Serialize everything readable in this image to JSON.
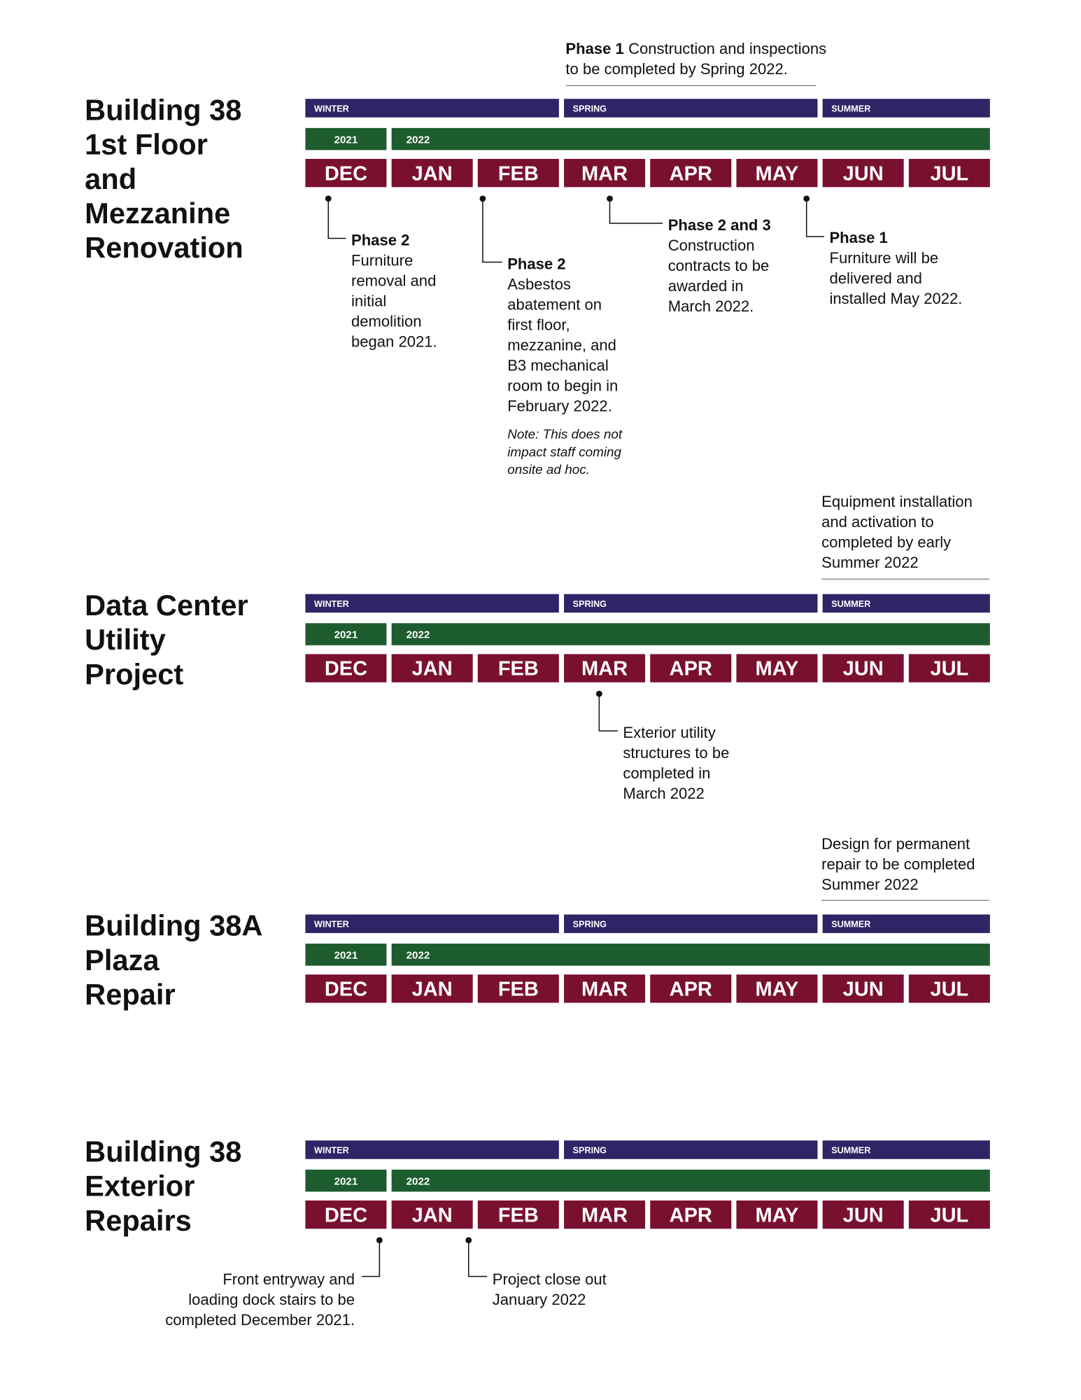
{
  "sections": [
    {
      "title": [
        "Building 38",
        "1st Floor",
        "and",
        "Mezzanine",
        "Renovation"
      ],
      "seasons": [
        "WINTER",
        "SPRING",
        "SUMMER"
      ],
      "years": [
        "2021",
        "2022"
      ],
      "months": [
        "DEC",
        "JAN",
        "FEB",
        "MAR",
        "APR",
        "MAY",
        "JUN",
        "JUL"
      ],
      "annotations": [
        {
          "lead": "Phase 1",
          "lines": [
            "Construction and inspections",
            "to be completed by Spring 2022."
          ]
        },
        {
          "lead": "Phase 2",
          "lines": [
            "Furniture",
            "removal and",
            "initial",
            "demolition",
            "began 2021."
          ]
        },
        {
          "lead": "Phase 2",
          "lines": [
            "Asbestos",
            "abatement on",
            "first floor,",
            "mezzanine, and",
            "B3 mechanical",
            "room to begin in",
            "February 2022."
          ],
          "note": [
            "Note: This does not",
            "impact staff coming",
            "onsite ad hoc."
          ]
        },
        {
          "lead": "Phase 2 and 3",
          "lines": [
            "Construction",
            "contracts to be",
            "awarded in",
            "March 2022."
          ]
        },
        {
          "lead": "Phase 1",
          "lines": [
            "Furniture will be",
            "delivered and",
            "installed May 2022."
          ]
        }
      ]
    },
    {
      "title": [
        "Data Center",
        "Utility",
        "Project"
      ],
      "seasons": [
        "WINTER",
        "SPRING",
        "SUMMER"
      ],
      "years": [
        "2021",
        "2022"
      ],
      "months": [
        "DEC",
        "JAN",
        "FEB",
        "MAR",
        "APR",
        "MAY",
        "JUN",
        "JUL"
      ],
      "annotations": [
        {
          "lines": [
            "Equipment installation",
            "and activation to",
            "completed by early",
            "Summer 2022"
          ]
        },
        {
          "lines": [
            "Exterior utility",
            "structures to be",
            "completed in",
            "March 2022"
          ]
        }
      ]
    },
    {
      "title": [
        "Building 38A",
        "Plaza",
        "Repair"
      ],
      "seasons": [
        "WINTER",
        "SPRING",
        "SUMMER"
      ],
      "years": [
        "2021",
        "2022"
      ],
      "months": [
        "DEC",
        "JAN",
        "FEB",
        "MAR",
        "APR",
        "MAY",
        "JUN",
        "JUL"
      ],
      "annotations": [
        {
          "lines": [
            "Design for permanent",
            "repair to be completed",
            "Summer 2022"
          ]
        }
      ]
    },
    {
      "title": [
        "Building 38",
        "Exterior",
        "Repairs"
      ],
      "seasons": [
        "WINTER",
        "SPRING",
        "SUMMER"
      ],
      "years": [
        "2021",
        "2022"
      ],
      "months": [
        "DEC",
        "JAN",
        "FEB",
        "MAR",
        "APR",
        "MAY",
        "JUN",
        "JUL"
      ],
      "annotations": [
        {
          "lines": [
            "Front entryway and",
            "loading dock stairs to be",
            "completed December 2021."
          ]
        },
        {
          "lines": [
            "Project close out",
            "January 2022"
          ]
        }
      ]
    }
  ]
}
